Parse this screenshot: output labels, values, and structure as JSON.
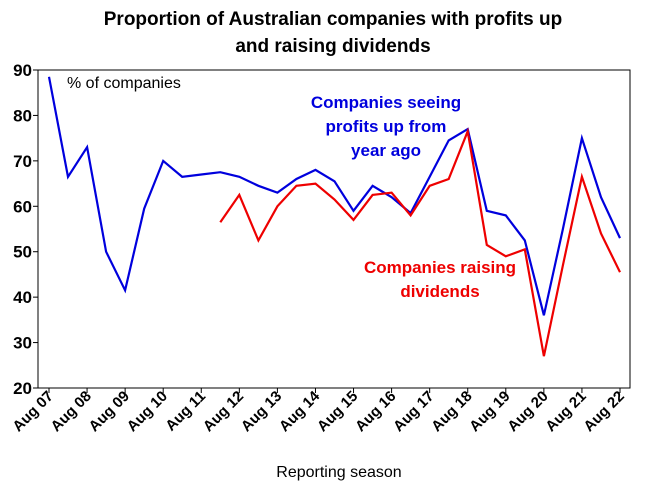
{
  "chart_data": {
    "type": "line",
    "title": "Proportion of Australian companies with profits up and raising dividends",
    "title_lines": [
      "Proportion of Australian companies with profits up",
      "and raising dividends"
    ],
    "xlabel": "Reporting season",
    "ylabel": "% of companies",
    "ylim": [
      20,
      90
    ],
    "yticks": [
      20,
      30,
      40,
      50,
      60,
      70,
      80,
      90
    ],
    "grid": false,
    "legend": "none",
    "x": [
      "Aug 07",
      "Feb 08",
      "Aug 08",
      "Feb 09",
      "Aug 09",
      "Feb 10",
      "Aug 10",
      "Feb 11",
      "Aug 11",
      "Feb 12",
      "Aug 12",
      "Feb 13",
      "Aug 13",
      "Feb 14",
      "Aug 14",
      "Feb 15",
      "Aug 15",
      "Feb 16",
      "Aug 16",
      "Feb 17",
      "Aug 17",
      "Feb 18",
      "Aug 18",
      "Feb 19",
      "Aug 19",
      "Feb 20",
      "Aug 20",
      "Feb 21",
      "Aug 21",
      "Feb 22",
      "Aug 22"
    ],
    "xtick_labels": [
      "Aug 07",
      "Aug 08",
      "Aug 09",
      "Aug 10",
      "Aug 11",
      "Aug 12",
      "Aug 13",
      "Aug 14",
      "Aug 15",
      "Aug 16",
      "Aug 17",
      "Aug 18",
      "Aug 19",
      "Aug 20",
      "Aug 21",
      "Aug 22"
    ],
    "series": [
      {
        "name": "Companies seeing profits up from year ago",
        "label_lines": [
          "Companies seeing",
          "profits up from",
          "year ago"
        ],
        "color": "#0000dd",
        "values": [
          88.5,
          66.5,
          73,
          50,
          41.5,
          59.5,
          70,
          66.5,
          67,
          67.5,
          66.5,
          64.5,
          63,
          66,
          68,
          65.5,
          59,
          64.5,
          62,
          58.5,
          66.5,
          74.5,
          77,
          59,
          58,
          52.5,
          36,
          55,
          75,
          62,
          53
        ]
      },
      {
        "name": "Companies raising dividends",
        "label_lines": [
          "Companies raising",
          "dividends"
        ],
        "color": "#ee0000",
        "values": [
          null,
          null,
          null,
          null,
          null,
          null,
          null,
          null,
          null,
          56.5,
          62.5,
          52.5,
          60,
          64.5,
          65,
          61.5,
          57,
          62.5,
          63,
          58,
          64.5,
          66,
          76.5,
          51.5,
          49,
          50.5,
          27,
          47,
          66.5,
          54,
          45.5
        ]
      }
    ]
  }
}
